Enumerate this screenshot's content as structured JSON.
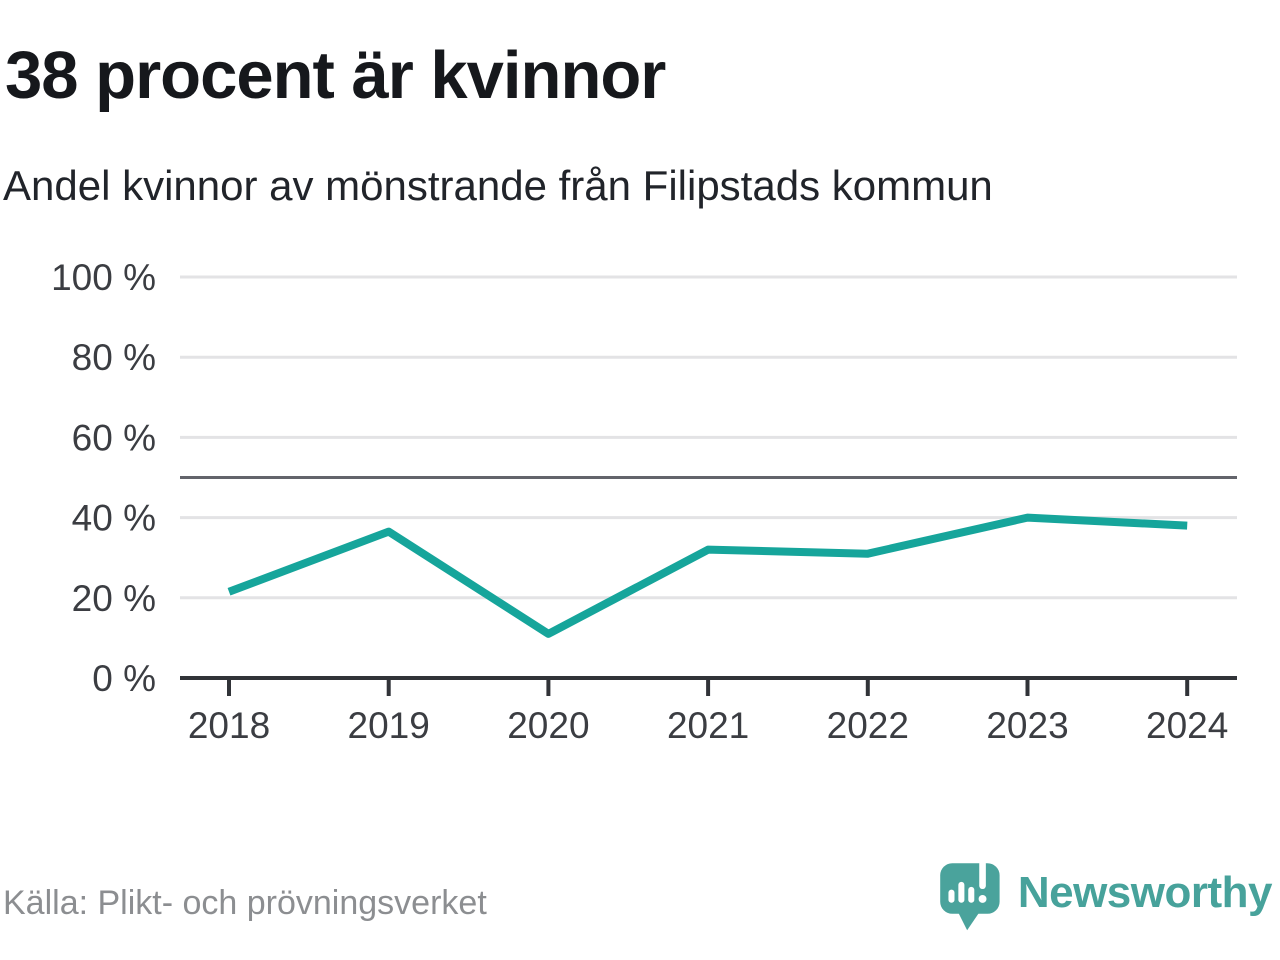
{
  "chart_data": {
    "type": "line",
    "title": "38 procent är kvinnor",
    "subtitle": "Andel kvinnor av mönstrande från Filipstads kommun",
    "x": [
      2018,
      2019,
      2020,
      2021,
      2022,
      2023,
      2024
    ],
    "series": [
      {
        "name": "Andel kvinnor",
        "values": [
          21.5,
          36.5,
          11,
          32,
          31,
          40,
          38
        ]
      }
    ],
    "ylim": [
      0,
      100
    ],
    "yticks": [
      0,
      20,
      40,
      60,
      80,
      100
    ],
    "ytick_suffix": " %",
    "reference_line": 50,
    "grid": true,
    "legend_position": "none",
    "line_color": "#16a59b"
  },
  "footer": {
    "source": "Källa: Plikt- och prövningsverket",
    "brand": "Newsworthy"
  },
  "colors": {
    "accent": "#16a59b",
    "logo": "#4aa39c",
    "axis_text": "#3b3d42",
    "grid": "#e3e3e5",
    "reference": "#63646b",
    "axis": "#313338",
    "muted_text": "#8c8e91"
  }
}
